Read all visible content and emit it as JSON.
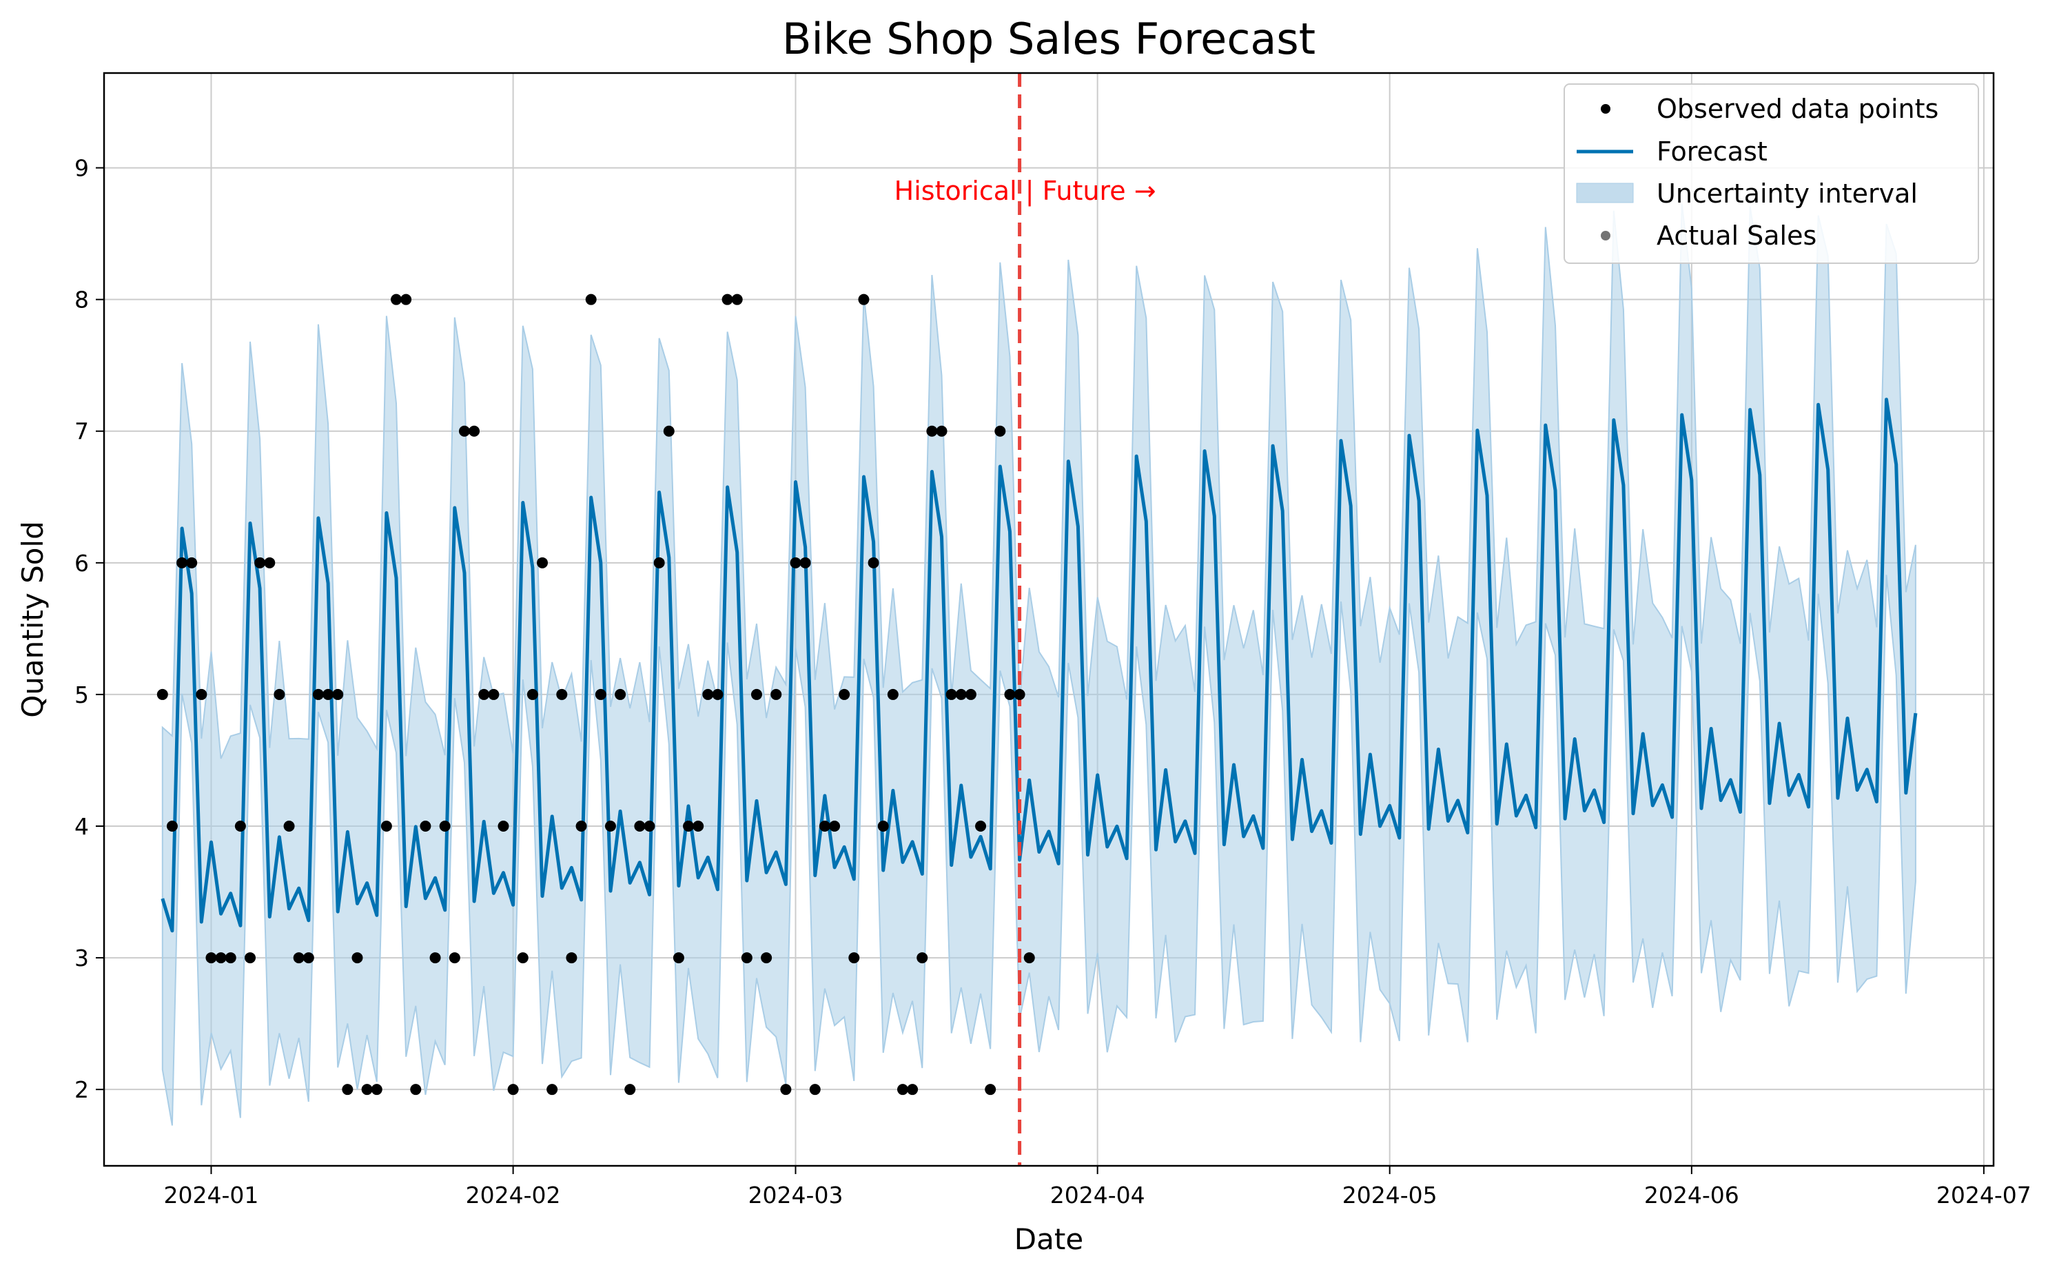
{
  "chart_data": {
    "type": "line",
    "title": "Bike Shop Sales Forecast",
    "xlabel": "Date",
    "ylabel": "Quantity Sold",
    "x_ticks": [
      "2024-01",
      "2024-02",
      "2024-03",
      "2024-04",
      "2024-05",
      "2024-06",
      "2024-07"
    ],
    "y_ticks": [
      2,
      3,
      4,
      5,
      6,
      7,
      8,
      9
    ],
    "xlim": [
      "2023-12-21",
      "2024-07-02"
    ],
    "ylim": [
      1.42,
      9.72
    ],
    "grid": true,
    "legend_position": "top-right",
    "history_start": "2023-12-27",
    "forecast_end": "2024-06-24",
    "split_date": "2024-03-24",
    "annotation": "Historical | Future →",
    "forecast_model": {
      "trend_start": 4.3,
      "trend_slope_per_day": 0.0056,
      "weekly_pattern": [
        -0.85,
        -1.1,
        1.95,
        1.45,
        -1.05,
        -0.45,
        -1.0
      ],
      "band_halfwidth_start": 1.3,
      "band_halfwidth_end": 1.45
    },
    "observed": [
      5,
      4,
      6,
      6,
      5,
      3,
      3,
      3,
      4,
      3,
      6,
      6,
      5,
      4,
      3,
      3,
      5,
      5,
      5,
      2,
      3,
      2,
      2,
      4,
      8,
      8,
      2,
      4,
      3,
      4,
      3,
      7,
      7,
      5,
      5,
      4,
      2,
      3,
      5,
      6,
      2,
      5,
      3,
      4,
      8,
      5,
      4,
      5,
      2,
      4,
      4,
      6,
      7,
      3,
      4,
      4,
      5,
      5,
      8,
      8,
      3,
      5,
      3,
      5,
      2,
      6,
      6,
      2,
      4,
      4,
      5,
      3,
      8,
      6,
      4,
      5,
      2,
      2,
      3,
      7,
      7,
      5,
      5,
      5,
      4,
      2,
      7,
      5,
      5,
      3
    ],
    "series": [
      {
        "name": "Observed data points",
        "kind": "point"
      },
      {
        "name": "Forecast",
        "kind": "line"
      },
      {
        "name": "Uncertainty interval",
        "kind": "band"
      },
      {
        "name": "Actual Sales",
        "kind": "point"
      }
    ]
  },
  "colors": {
    "forecast": "#0072B2",
    "band": "#a9cde6",
    "split_line": "#e8423c",
    "annotation": "#ff0000",
    "point": "#000000",
    "grid": "#cccccc"
  }
}
